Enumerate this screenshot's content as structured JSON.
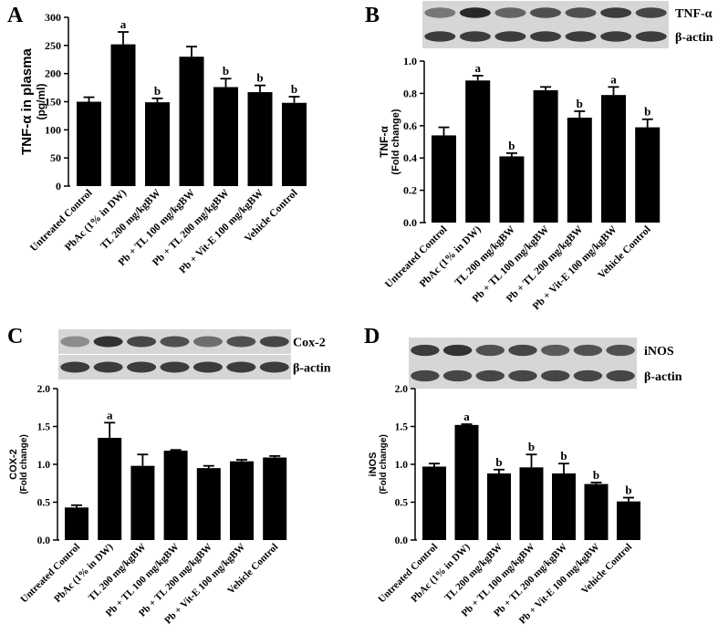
{
  "chart_data": [
    {
      "panel": "A",
      "type": "bar",
      "categories": [
        "Untreated Control",
        "PbAc (1% in DW)",
        "TL 200 mg/kgBW",
        "Pb + TL 100 mg/kgBW",
        "Pb + TL 200 mg/kgBW",
        "Pb + Vit-E 100 mg/kgBW",
        "Vehicle Control"
      ],
      "values": [
        150,
        252,
        149,
        230,
        176,
        167,
        148
      ],
      "errors": [
        8,
        22,
        7,
        18,
        15,
        12,
        11
      ],
      "letters": [
        "",
        "a",
        "b",
        "",
        "b",
        "b",
        "b"
      ],
      "ylabel": "TNF-α in plasma",
      "yunit": "(pg/ml)",
      "ylim": [
        0,
        300
      ],
      "yticks": [
        "0",
        "50",
        "100",
        "150",
        "200",
        "250",
        "300"
      ]
    },
    {
      "panel": "B",
      "type": "bar",
      "categories": [
        "Untreated Control",
        "PbAc (1% in DW)",
        "TL 200 mg/kgBW",
        "Pb + TL 100 mg/kgBW",
        "Pb + TL 200 mg/kgBW",
        "Pb + Vit-E 100 mg/kgBW",
        "Vehicle Control"
      ],
      "values": [
        0.54,
        0.88,
        0.41,
        0.82,
        0.65,
        0.79,
        0.59
      ],
      "errors": [
        0.05,
        0.03,
        0.02,
        0.02,
        0.04,
        0.05,
        0.05
      ],
      "letters": [
        "",
        "a",
        "b",
        "",
        "b",
        "a",
        "b"
      ],
      "ylabel": "TNF-α",
      "yunit": "(Fold change)",
      "ylim": [
        0,
        1.0
      ],
      "yticks": [
        "0.0",
        "0.2",
        "0.4",
        "0.6",
        "0.8",
        "1.0"
      ],
      "blot_labels": [
        "TNF-α",
        "β-actin"
      ],
      "blot_intensity": [
        [
          0.55,
          0.95,
          0.65,
          0.75,
          0.75,
          0.85,
          0.8
        ],
        [
          0.85,
          0.85,
          0.85,
          0.85,
          0.85,
          0.85,
          0.85
        ]
      ]
    },
    {
      "panel": "C",
      "type": "bar",
      "categories": [
        "Untreated Control",
        "PbAc (1% in DW)",
        "TL 200 mg/kgBW",
        "Pb + TL 100 mg/kgBW",
        "Pb + TL 200 mg/kgBW",
        "Pb + Vit-E 100 mg/kgBW",
        "Vehicle Control"
      ],
      "values": [
        0.43,
        1.35,
        0.98,
        1.18,
        0.95,
        1.04,
        1.09
      ],
      "errors": [
        0.03,
        0.2,
        0.15,
        0.01,
        0.03,
        0.02,
        0.02
      ],
      "letters": [
        "",
        "a",
        "",
        "",
        "",
        "",
        ""
      ],
      "ylabel": "COX-2",
      "yunit": "(Fold change)",
      "ylim": [
        0,
        2.0
      ],
      "yticks": [
        "0.0",
        "0.5",
        "1.0",
        "1.5",
        "2.0"
      ],
      "blot_labels": [
        "Cox-2",
        "β-actin"
      ],
      "blot_intensity": [
        [
          0.45,
          0.9,
          0.8,
          0.75,
          0.6,
          0.75,
          0.8
        ],
        [
          0.85,
          0.85,
          0.85,
          0.85,
          0.85,
          0.85,
          0.85
        ]
      ]
    },
    {
      "panel": "D",
      "type": "bar",
      "categories": [
        "Untreated Control",
        "PbAc (1% in DW)",
        "TL 200 mg/kgBW",
        "Pb + TL 100 mg/kgBW",
        "Pb + TL 200 mg/kgBW",
        "Pb + Vit-E 100 mg/kgBW",
        "Vehicle Control"
      ],
      "values": [
        0.97,
        1.52,
        0.88,
        0.96,
        0.88,
        0.74,
        0.51
      ],
      "errors": [
        0.04,
        0.01,
        0.05,
        0.17,
        0.13,
        0.02,
        0.05
      ],
      "letters": [
        "",
        "a",
        "b",
        "b",
        "b",
        "b",
        "b"
      ],
      "ylabel": "iNOS",
      "yunit": "(Fold change)",
      "ylim": [
        0,
        2.0
      ],
      "yticks": [
        "0.0",
        "0.5",
        "1.0",
        "1.5",
        "2.0"
      ],
      "blot_labels": [
        "iNOS",
        "β-actin"
      ],
      "blot_intensity": [
        [
          0.85,
          0.9,
          0.75,
          0.8,
          0.7,
          0.75,
          0.75
        ],
        [
          0.8,
          0.8,
          0.8,
          0.8,
          0.8,
          0.8,
          0.8
        ]
      ]
    }
  ]
}
